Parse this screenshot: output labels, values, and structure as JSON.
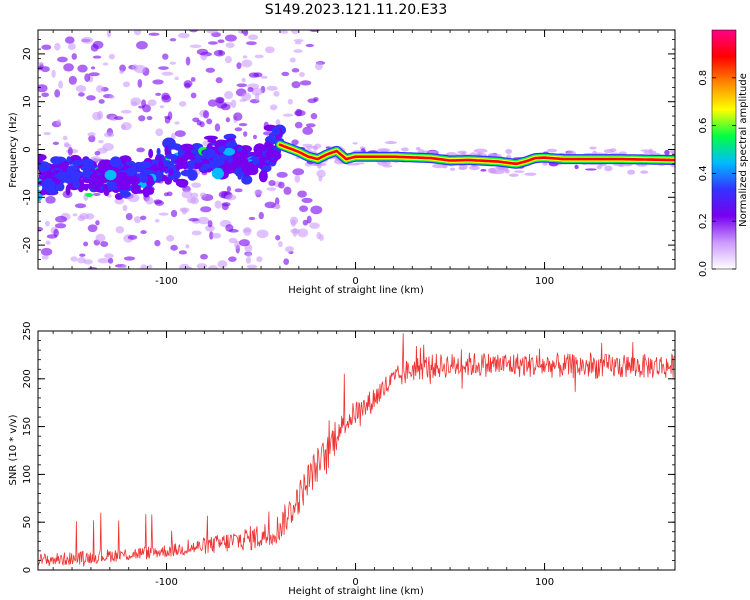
{
  "figure": {
    "title": "S149.2023.121.11.20.E33"
  },
  "colors": {
    "snr_line": "#ee3333",
    "axes": "#000000",
    "background": "#ffffff"
  },
  "chart_data": [
    {
      "type": "heatmap",
      "title": "S149.2023.121.11.20.E33",
      "xlabel": "Height of straight line (km)",
      "ylabel": "Frequency (Hz)",
      "xlim": [
        -168,
        169
      ],
      "ylim": [
        -25,
        25
      ],
      "x_ticks": [
        {
          "value": -100,
          "label": "-100"
        },
        {
          "value": 0,
          "label": "0"
        },
        {
          "value": 100,
          "label": "100"
        }
      ],
      "y_ticks": [
        {
          "value": -20,
          "label": "-20"
        },
        {
          "value": -10,
          "label": "-10"
        },
        {
          "value": 0,
          "label": "0"
        },
        {
          "value": 10,
          "label": "10"
        },
        {
          "value": 20,
          "label": "20"
        }
      ],
      "colormap": "rainbow",
      "colorbar": {
        "label": "Normalized spectral amplitude",
        "range": [
          0,
          1
        ],
        "ticks": [
          {
            "value": 0.0,
            "label": "0.0"
          },
          {
            "value": 0.2,
            "label": "0.2"
          },
          {
            "value": 0.4,
            "label": "0.4"
          },
          {
            "value": 0.6,
            "label": "0.6"
          },
          {
            "value": 0.8,
            "label": "0.8"
          }
        ],
        "stops": [
          "#ffffff",
          "#cc99ff",
          "#7700ee",
          "#3333ff",
          "#00bbff",
          "#00ff44",
          "#ffff00",
          "#ff8800",
          "#ff0000",
          "#ff0088"
        ]
      },
      "ridge": {
        "x": [
          -40,
          -30,
          -25,
          -20,
          -15,
          -10,
          -5,
          0,
          20,
          40,
          50,
          60,
          75,
          85,
          90,
          95,
          100,
          110,
          120,
          140,
          169
        ],
        "y": [
          1.0,
          -0.5,
          -1.5,
          -2.0,
          -1.0,
          -0.3,
          -2.0,
          -1.5,
          -1.5,
          -1.8,
          -2.3,
          -2.2,
          -2.5,
          -3.0,
          -2.5,
          -1.8,
          -1.7,
          -2.0,
          -2.0,
          -2.0,
          -2.2
        ]
      },
      "cloud": {
        "x": [
          -168,
          -150,
          -130,
          -110,
          -90,
          -70,
          -50,
          -40
        ],
        "y": [
          -6.0,
          -5.0,
          -6.0,
          -5.5,
          -2.0,
          -1.0,
          -3.0,
          2.0
        ]
      }
    },
    {
      "type": "line",
      "title": "",
      "xlabel": "Height of straight line (km)",
      "ylabel": "SNR (10 * v/v)",
      "xlim": [
        -168,
        169
      ],
      "ylim": [
        0,
        250
      ],
      "x_ticks": [
        {
          "value": -100,
          "label": "-100"
        },
        {
          "value": 0,
          "label": "0"
        },
        {
          "value": 100,
          "label": "100"
        }
      ],
      "y_ticks": [
        {
          "value": 0,
          "label": "0"
        },
        {
          "value": 50,
          "label": "50"
        },
        {
          "value": 100,
          "label": "100"
        },
        {
          "value": 150,
          "label": "150"
        },
        {
          "value": 200,
          "label": "200"
        },
        {
          "value": 250,
          "label": "250"
        }
      ],
      "series": [
        {
          "x": [
            -168,
            -150,
            -130,
            -110,
            -90,
            -70,
            -60,
            -50,
            -45,
            -40,
            -35,
            -30,
            -25,
            -20,
            -15,
            -10,
            -5,
            0,
            5,
            10,
            15,
            20,
            25,
            30,
            40,
            60,
            80,
            100,
            120,
            140,
            169
          ],
          "y": [
            10,
            12,
            15,
            18,
            22,
            28,
            32,
            35,
            38,
            45,
            60,
            75,
            95,
            110,
            120,
            145,
            155,
            165,
            170,
            180,
            190,
            198,
            205,
            210,
            213,
            215,
            215,
            214,
            213,
            213,
            213
          ]
        }
      ]
    }
  ]
}
